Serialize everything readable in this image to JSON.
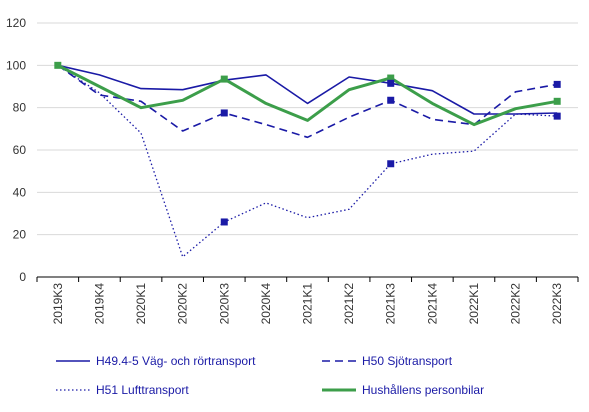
{
  "chart_data": {
    "type": "line",
    "categories": [
      "2019K3",
      "2019K4",
      "2020K1",
      "2020K2",
      "2020K3",
      "2020K4",
      "2021K1",
      "2021K2",
      "2021K3",
      "2021K4",
      "2022K1",
      "2022K2",
      "2022K3"
    ],
    "ylim": [
      0,
      120
    ],
    "yticks": [
      0,
      20,
      40,
      60,
      80,
      100,
      120
    ],
    "grid": "horizontal",
    "legend_position": "bottom",
    "series": [
      {
        "name": "H49.4-5 Väg- och rörtransport",
        "style": "solid",
        "color": "#1a1aa6",
        "values": [
          100,
          95.5,
          89,
          88.5,
          93,
          95.5,
          82,
          94.5,
          91.5,
          88,
          77,
          77,
          77.5
        ]
      },
      {
        "name": "H50 Sjötransport",
        "style": "dashed",
        "color": "#1a1aa6",
        "values": [
          100,
          86,
          83,
          69,
          77.5,
          72,
          66,
          75.5,
          83.5,
          74.5,
          72,
          87.5,
          91
        ]
      },
      {
        "name": "H51 Lufttransport",
        "style": "dotted",
        "color": "#1a1aa6",
        "values": [
          100,
          87,
          68,
          9.5,
          26,
          35,
          28,
          32,
          53.5,
          58,
          59.5,
          77,
          76
        ]
      },
      {
        "name": "Hushållens personbilar",
        "style": "solid-thick",
        "color": "#3c9e4a",
        "values": [
          100,
          90,
          80,
          83.5,
          93.5,
          82,
          74,
          88.5,
          94,
          82,
          72,
          79.5,
          83
        ]
      }
    ],
    "markers": [
      {
        "series": 0,
        "index": 0,
        "color": "#3c9e4a"
      },
      {
        "series": 1,
        "index": 4,
        "color": "#1a1aa6"
      },
      {
        "series": 2,
        "index": 4,
        "color": "#1a1aa6"
      },
      {
        "series": 3,
        "index": 4,
        "color": "#3c9e4a"
      },
      {
        "series": 1,
        "index": 8,
        "color": "#1a1aa6"
      },
      {
        "series": 2,
        "index": 8,
        "color": "#1a1aa6"
      },
      {
        "series": 3,
        "index": 8,
        "color": "#3c9e4a"
      },
      {
        "series": 0,
        "index": 8,
        "color": "#1a1aa6"
      },
      {
        "series": 1,
        "index": 12,
        "color": "#1a1aa6"
      },
      {
        "series": 2,
        "index": 12,
        "color": "#1a1aa6"
      },
      {
        "series": 3,
        "index": 12,
        "color": "#3c9e4a"
      }
    ]
  }
}
